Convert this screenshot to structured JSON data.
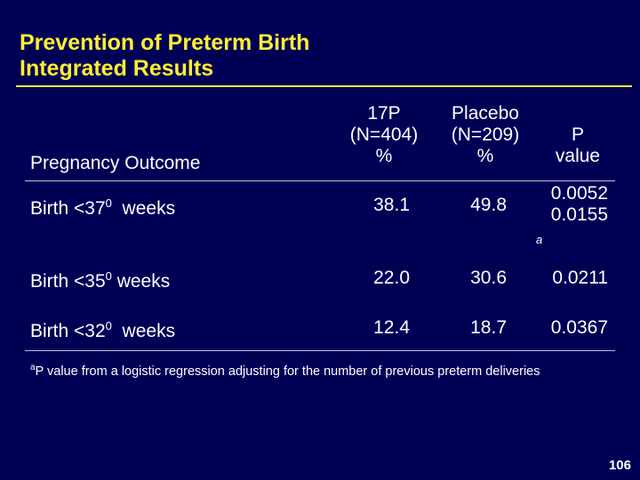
{
  "title": {
    "line1": "Prevention of Preterm Birth",
    "line2": "Integrated Results"
  },
  "table": {
    "headers": {
      "outcome": "Pregnancy Outcome",
      "col_17p": [
        "17P",
        "(N=404)",
        "%"
      ],
      "col_placebo": [
        "Placebo",
        "(N=209)",
        "%"
      ],
      "col_p": [
        "P",
        "value"
      ]
    },
    "rows": [
      {
        "label_pre": "Birth <37",
        "label_sup": "0",
        "label_post": "  weeks",
        "p17": "38.1",
        "placebo": "49.8",
        "p_values": [
          "0.0052",
          "0.0155"
        ],
        "p_mark": "a"
      },
      {
        "label_pre": "Birth <35",
        "label_sup": "0",
        "label_post": " weeks",
        "p17": "22.0",
        "placebo": "30.6",
        "p_values": [
          "0.0211"
        ]
      },
      {
        "label_pre": "Birth <32",
        "label_sup": "0",
        "label_post": "  weeks",
        "p17": "12.4",
        "placebo": "18.7",
        "p_values": [
          "0.0367"
        ]
      }
    ]
  },
  "footnote": {
    "mark": "a",
    "text": "P value from a logistic regression adjusting for the number of previous preterm deliveries"
  },
  "page_number": "106",
  "colors": {
    "background": "#000055",
    "title": "#ffee33",
    "text": "#ffffff"
  }
}
